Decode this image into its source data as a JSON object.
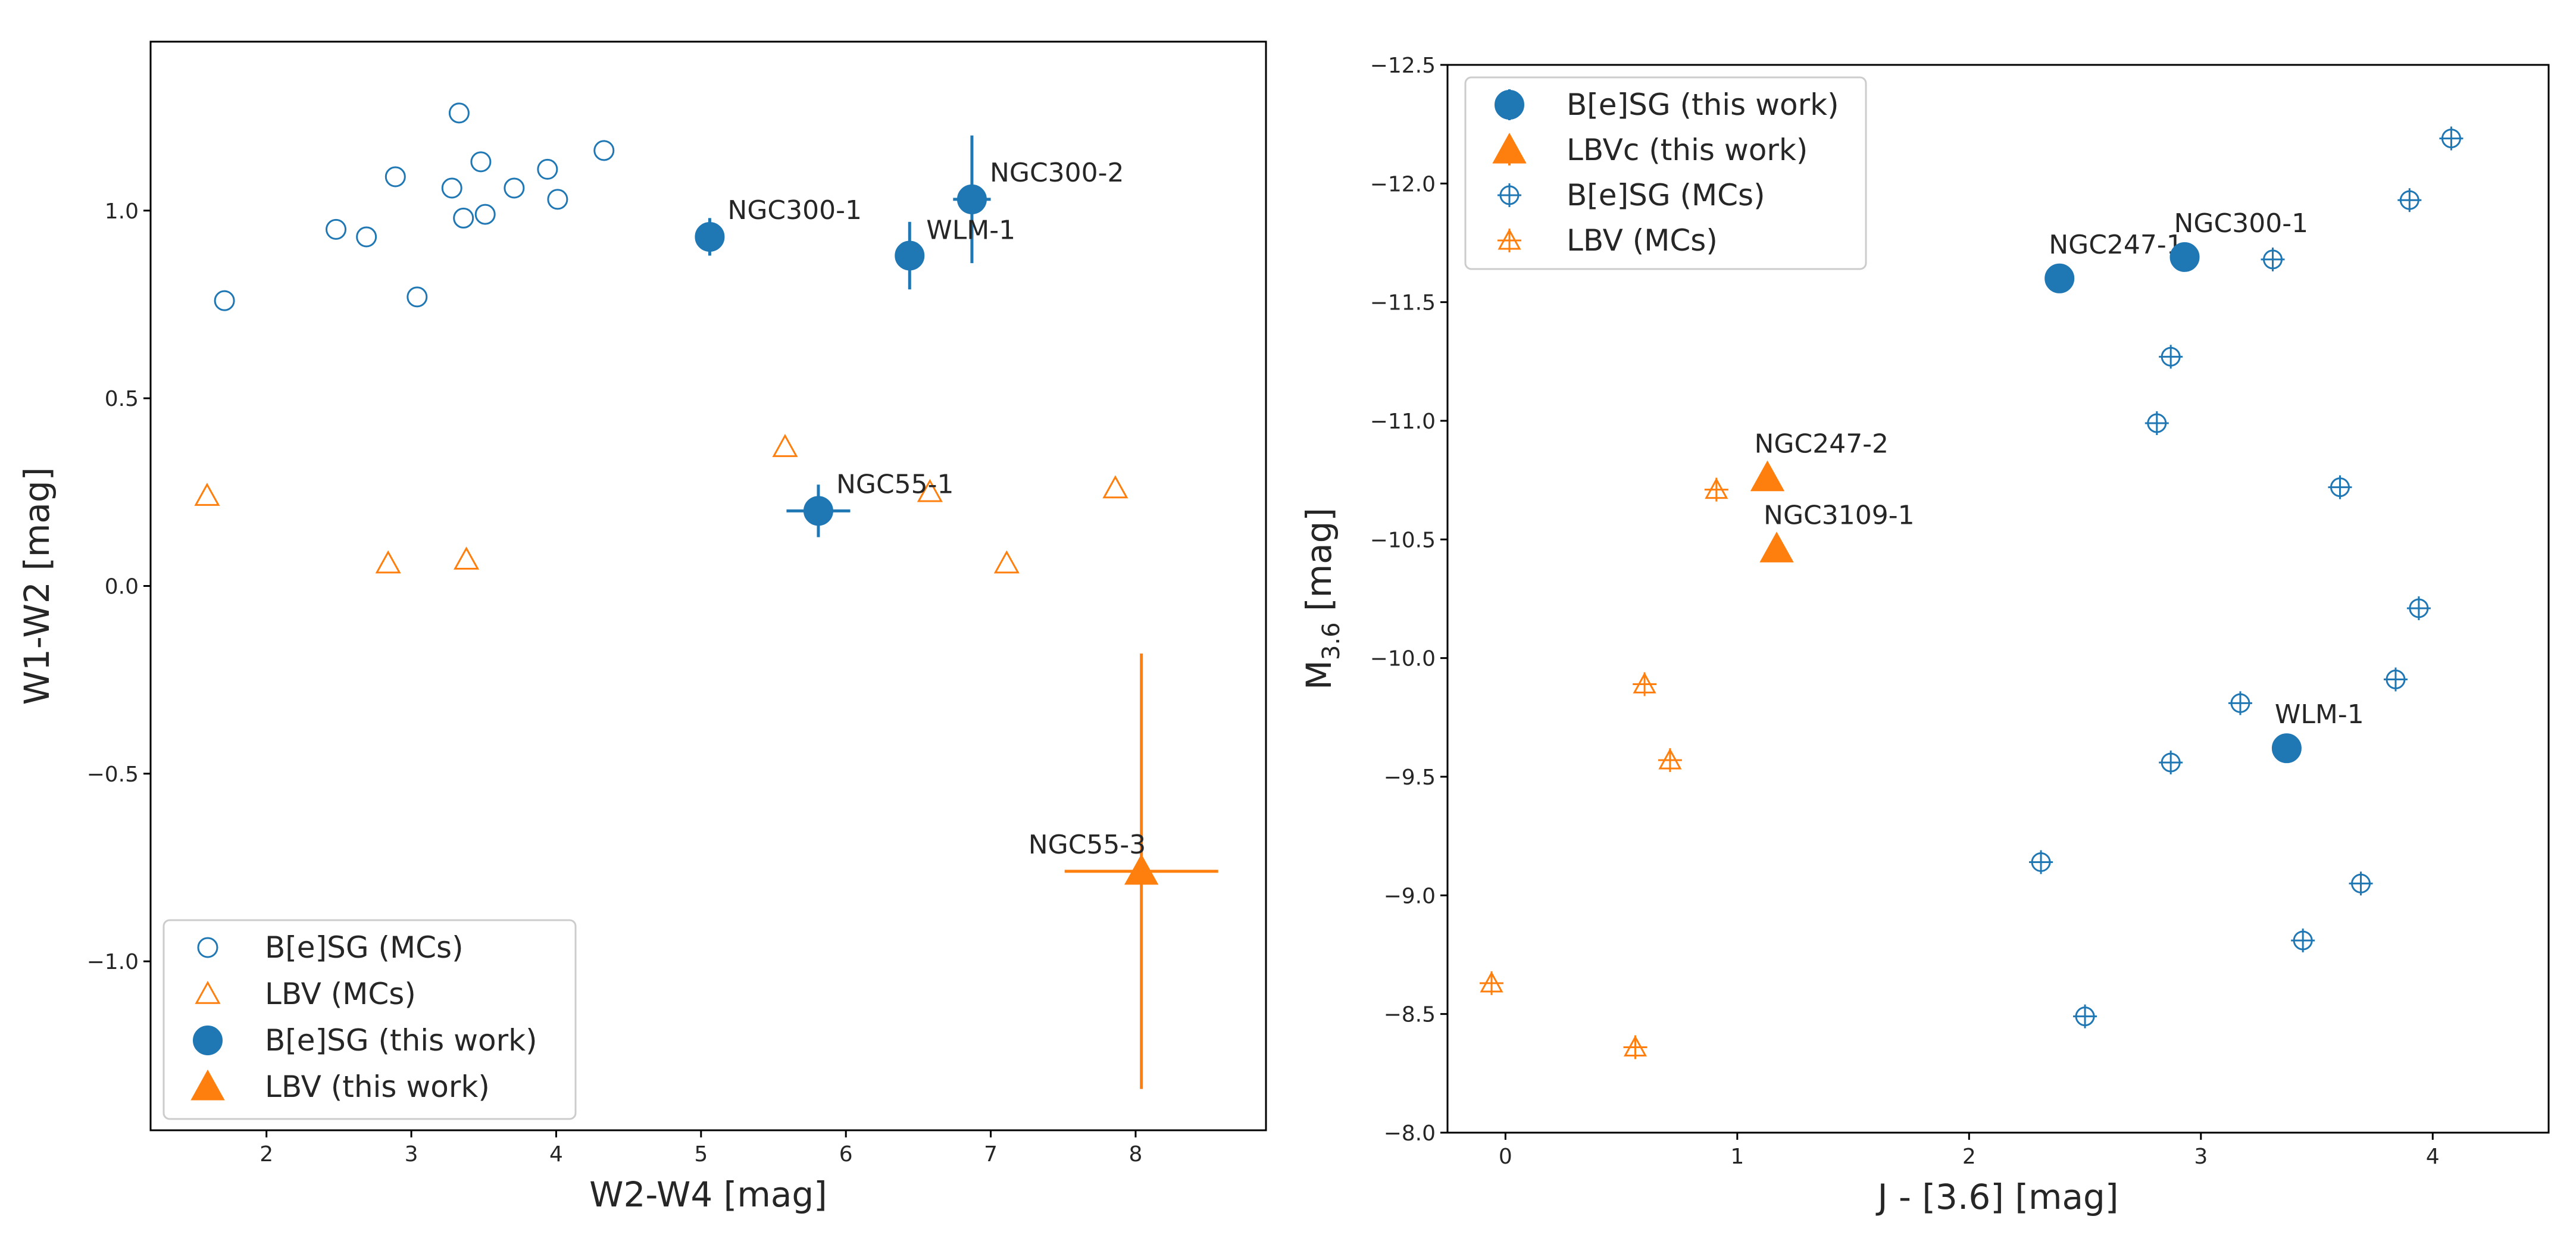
{
  "colors": {
    "blue": "#1f77b4",
    "orange": "#ff7f0e"
  },
  "chart_data": [
    {
      "type": "scatter",
      "title": "",
      "xlabel": "W2-W4 [mag]",
      "ylabel": "W1-W2 [mag]",
      "xlim": [
        1.2,
        8.9
      ],
      "ylim": [
        -1.45,
        1.45
      ],
      "xticks": [
        2,
        3,
        4,
        5,
        6,
        7,
        8
      ],
      "yticks": [
        -1.0,
        -0.5,
        0.0,
        0.5,
        1.0
      ],
      "xtick_labels": [
        "2",
        "3",
        "4",
        "5",
        "6",
        "7",
        "8"
      ],
      "ytick_labels": [
        "−1.0",
        "−0.5",
        "0.0",
        "0.5",
        "1.0"
      ],
      "legend_position": "lower-left",
      "series": [
        {
          "name": "B[e]SG (MCs)",
          "marker": "open-circle",
          "color": "#1f77b4",
          "points": [
            {
              "x": 1.71,
              "y": 0.76
            },
            {
              "x": 2.48,
              "y": 0.95
            },
            {
              "x": 2.69,
              "y": 0.93
            },
            {
              "x": 2.89,
              "y": 1.09
            },
            {
              "x": 3.04,
              "y": 0.77
            },
            {
              "x": 3.28,
              "y": 1.06
            },
            {
              "x": 3.33,
              "y": 1.26
            },
            {
              "x": 3.36,
              "y": 0.98
            },
            {
              "x": 3.48,
              "y": 1.13
            },
            {
              "x": 3.51,
              "y": 0.99
            },
            {
              "x": 3.71,
              "y": 1.06
            },
            {
              "x": 3.94,
              "y": 1.11
            },
            {
              "x": 4.01,
              "y": 1.03
            },
            {
              "x": 4.33,
              "y": 1.16
            }
          ]
        },
        {
          "name": "LBV (MCs)",
          "marker": "open-triangle",
          "color": "#ff7f0e",
          "points": [
            {
              "x": 1.59,
              "y": 0.24
            },
            {
              "x": 2.84,
              "y": 0.06
            },
            {
              "x": 3.38,
              "y": 0.07
            },
            {
              "x": 5.58,
              "y": 0.37
            },
            {
              "x": 6.58,
              "y": 0.25
            },
            {
              "x": 7.11,
              "y": 0.06
            },
            {
              "x": 7.86,
              "y": 0.26
            }
          ]
        },
        {
          "name": "B[e]SG (this work)",
          "marker": "filled-circle",
          "color": "#1f77b4",
          "points": [
            {
              "x": 5.06,
              "y": 0.93,
              "xerr": 0.05,
              "yerr": 0.05,
              "label": "NGC300-1"
            },
            {
              "x": 6.87,
              "y": 1.03,
              "xerr": 0.13,
              "yerr": 0.17,
              "label": "NGC300-2"
            },
            {
              "x": 6.44,
              "y": 0.88,
              "xerr": 0.05,
              "yerr": 0.09,
              "label": "WLM-1"
            },
            {
              "x": 5.81,
              "y": 0.2,
              "xerr": 0.22,
              "yerr": 0.07,
              "label": "NGC55-1"
            }
          ]
        },
        {
          "name": "LBV (this work)",
          "marker": "filled-triangle",
          "color": "#ff7f0e",
          "points": [
            {
              "x": 8.04,
              "y": -0.76,
              "xerr": 0.53,
              "yerr": 0.58,
              "label": "NGC55-3"
            }
          ]
        }
      ],
      "legend": [
        "B[e]SG (MCs)",
        "LBV (MCs)",
        "B[e]SG (this work)",
        "LBV (this work)"
      ]
    },
    {
      "type": "scatter",
      "title": "",
      "xlabel": "J - [3.6] [mag]",
      "ylabel_main": "M",
      "ylabel_sub": "3.6",
      "ylabel_rest": " [mag]",
      "xlim": [
        -0.25,
        4.5
      ],
      "ylim": [
        -8.0,
        -12.5
      ],
      "xticks": [
        0,
        1,
        2,
        3,
        4
      ],
      "yticks": [
        -8.0,
        -8.5,
        -9.0,
        -9.5,
        -10.0,
        -10.5,
        -11.0,
        -11.5,
        -12.0,
        -12.5
      ],
      "xtick_labels": [
        "0",
        "1",
        "2",
        "3",
        "4"
      ],
      "ytick_labels": [
        "−8.0",
        "−8.5",
        "−9.0",
        "−9.5",
        "−10.0",
        "−10.5",
        "−11.0",
        "−11.5",
        "−12.0",
        "−12.5"
      ],
      "legend_position": "top-left",
      "series": [
        {
          "name": "B[e]SG (this work)",
          "marker": "filled-circle",
          "color": "#1f77b4",
          "points": [
            {
              "x": 2.39,
              "y": -11.6,
              "label": "NGC247-1"
            },
            {
              "x": 2.93,
              "y": -11.69,
              "label": "NGC300-1"
            },
            {
              "x": 3.37,
              "y": -9.62,
              "label": "WLM-1"
            }
          ]
        },
        {
          "name": "LBVc (this work)",
          "marker": "filled-triangle",
          "color": "#ff7f0e",
          "points": [
            {
              "x": 1.13,
              "y": -10.76,
              "label": "NGC247-2"
            },
            {
              "x": 1.17,
              "y": -10.46,
              "label": "NGC3109-1"
            }
          ]
        },
        {
          "name": "B[e]SG (MCs)",
          "marker": "open-circle-cross",
          "color": "#1f77b4",
          "points": [
            {
              "x": 4.08,
              "y": -12.19
            },
            {
              "x": 3.9,
              "y": -11.93
            },
            {
              "x": 3.31,
              "y": -11.68
            },
            {
              "x": 2.87,
              "y": -11.27
            },
            {
              "x": 2.81,
              "y": -10.99
            },
            {
              "x": 3.6,
              "y": -10.72
            },
            {
              "x": 3.94,
              "y": -10.21
            },
            {
              "x": 3.84,
              "y": -9.91
            },
            {
              "x": 3.17,
              "y": -9.81
            },
            {
              "x": 2.87,
              "y": -9.56
            },
            {
              "x": 2.31,
              "y": -9.14
            },
            {
              "x": 3.69,
              "y": -9.05
            },
            {
              "x": 3.44,
              "y": -8.81
            },
            {
              "x": 2.5,
              "y": -8.49
            }
          ]
        },
        {
          "name": "LBV (MCs)",
          "marker": "open-triangle-cross",
          "color": "#ff7f0e",
          "points": [
            {
              "x": 0.91,
              "y": -10.71
            },
            {
              "x": 0.6,
              "y": -9.89
            },
            {
              "x": 0.71,
              "y": -9.57
            },
            {
              "x": -0.06,
              "y": -8.63
            },
            {
              "x": 0.56,
              "y": -8.36
            }
          ]
        }
      ],
      "legend": [
        "B[e]SG (this work)",
        "LBVc (this work)",
        "B[e]SG (MCs)",
        "LBV (MCs)"
      ]
    }
  ]
}
